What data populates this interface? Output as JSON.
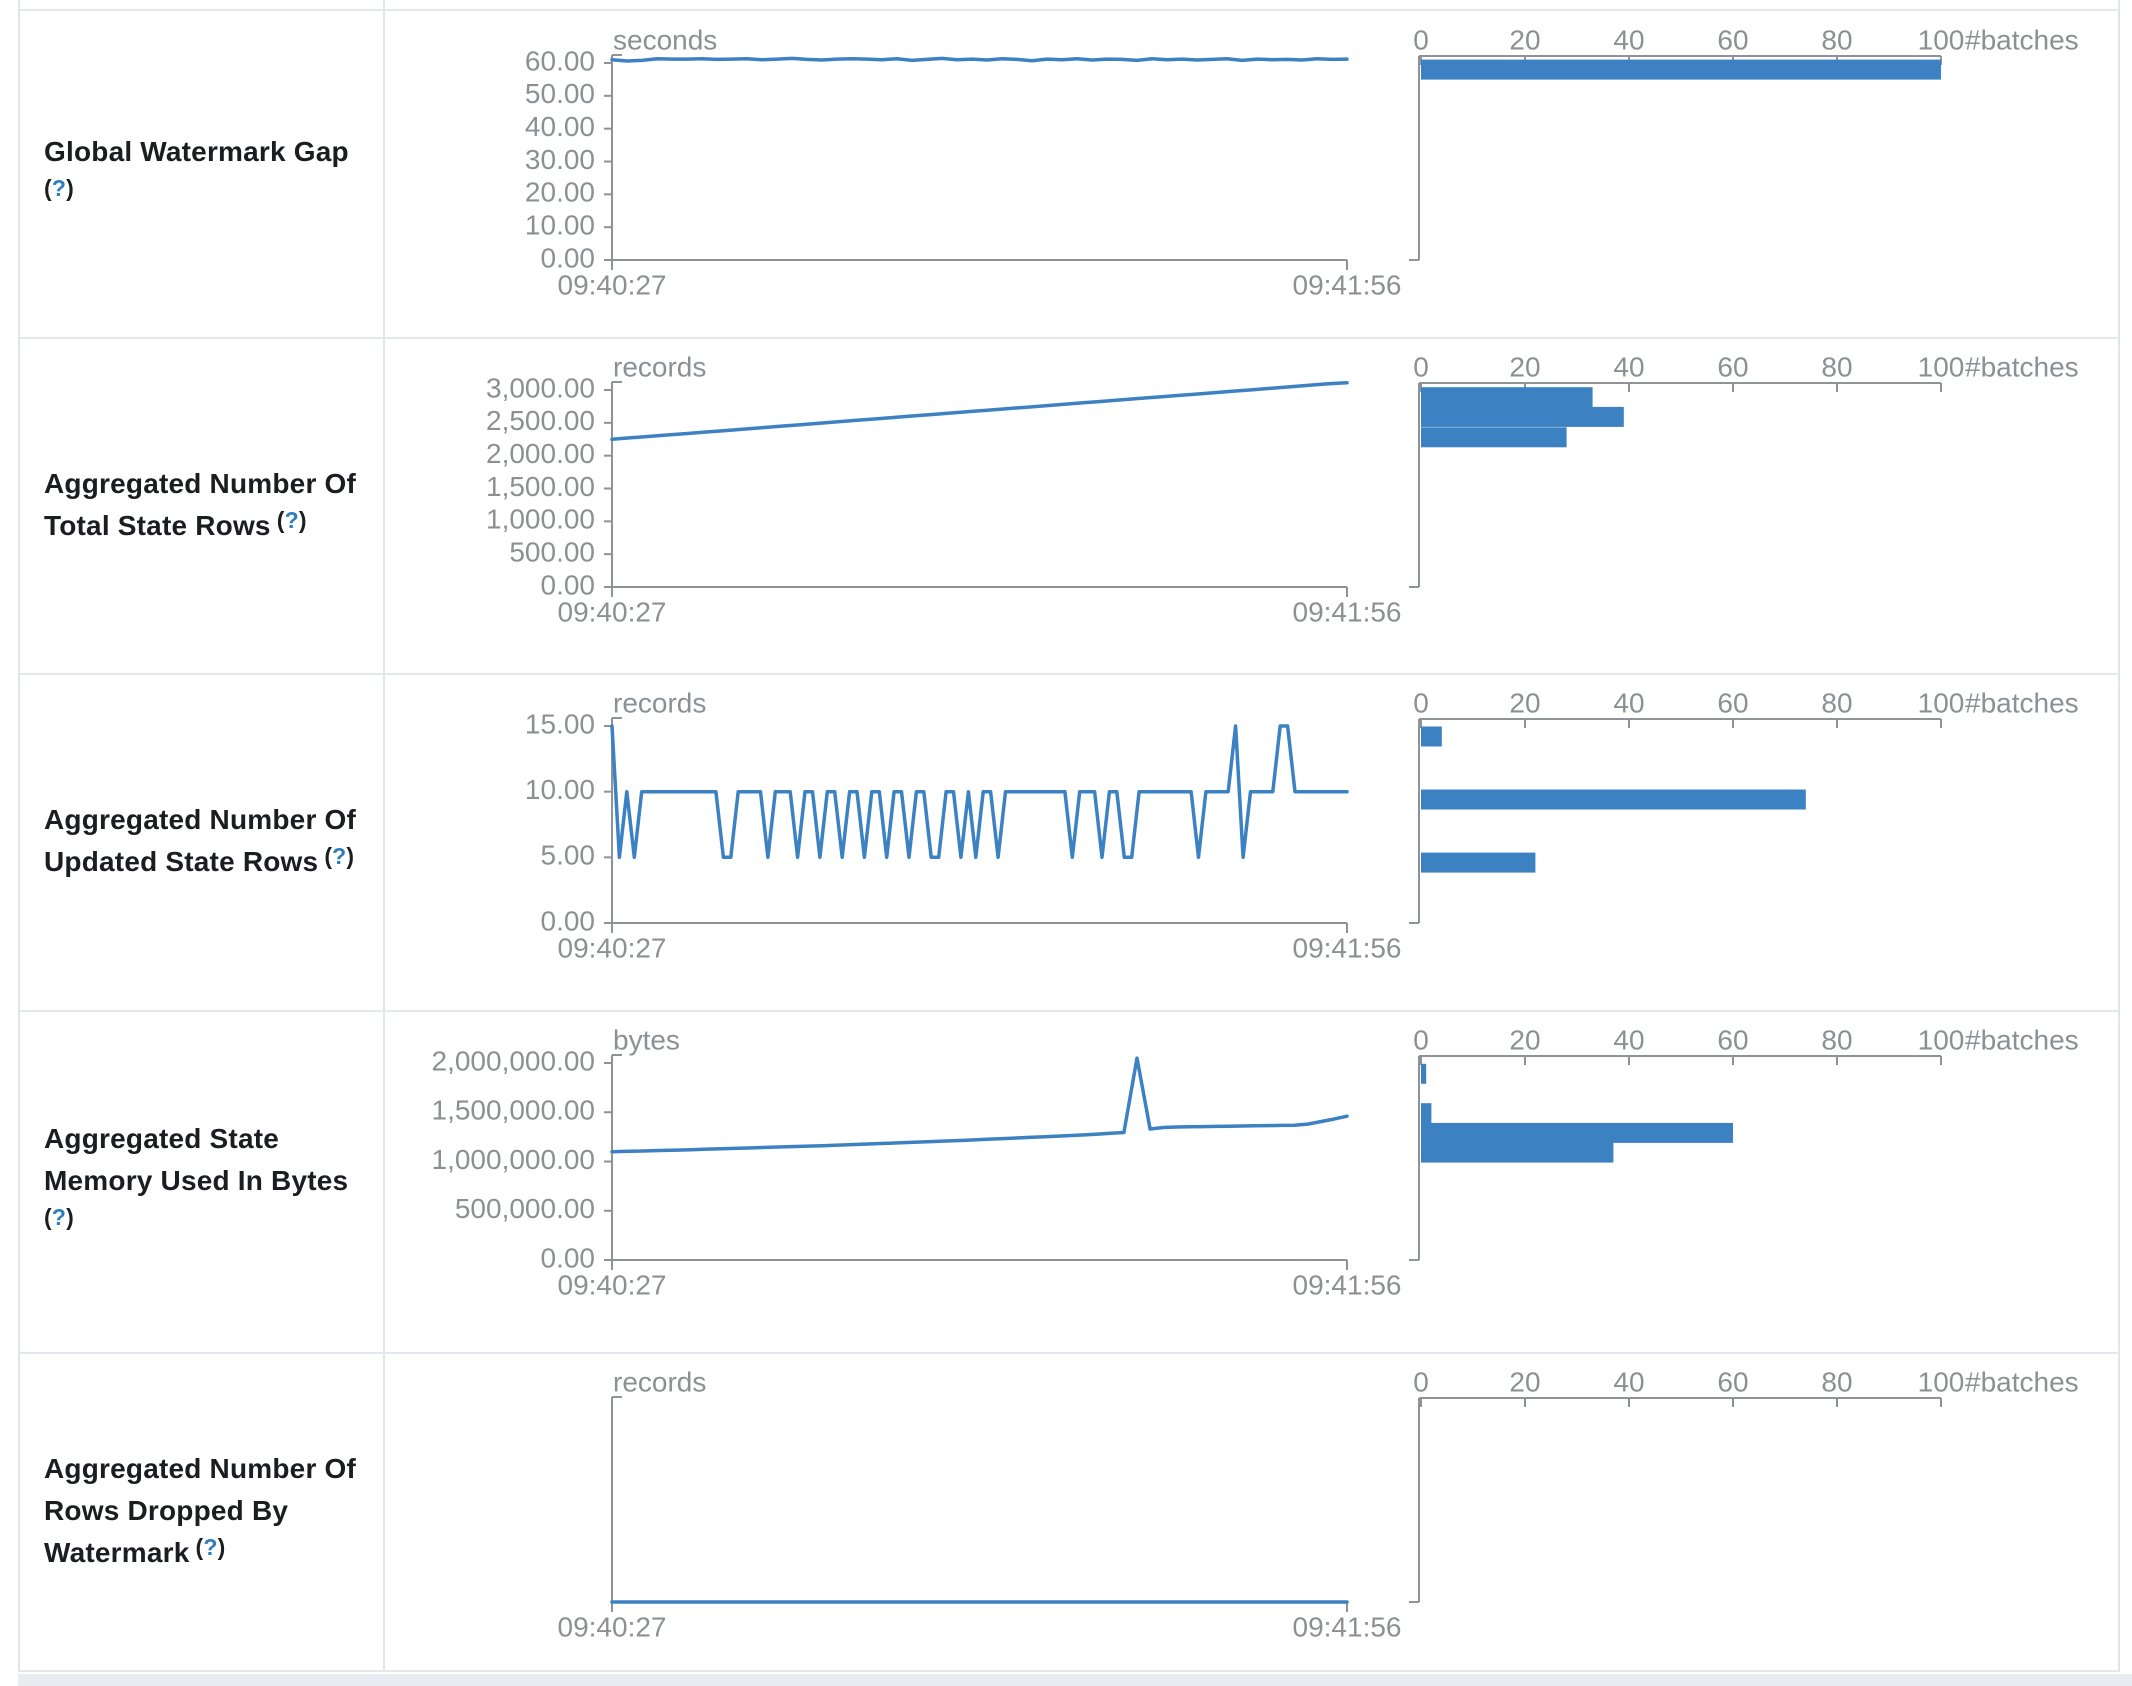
{
  "page": {
    "background": "#ffffff"
  },
  "colors": {
    "accent_blue": "#3c82c3",
    "axis_gray": "#8f9296",
    "tick_text_gray": "#8d9093",
    "label_text": "#1b1d21",
    "help_blue": "#2e7dc0",
    "border": "#e4e7eb",
    "bottom_band": "#e9ecf0"
  },
  "rows": [
    {
      "label_lines": [
        "Global Watermark Gap",
        "(?)"
      ]
    },
    {
      "label_lines": [
        "Aggregated Number Of",
        "Total State Rows (?)"
      ]
    },
    {
      "label_lines": [
        "Aggregated Number Of",
        "Updated State Rows (?)"
      ]
    },
    {
      "label_lines": [
        "Aggregated State",
        "Memory Used In Bytes",
        "(?)"
      ]
    },
    {
      "label_lines": [
        "Aggregated Number Of",
        "Rows Dropped By",
        "Watermark (?)"
      ]
    }
  ],
  "chart_data": [
    {
      "metric": "Global Watermark Gap",
      "timeline": {
        "type": "line",
        "unit": "seconds",
        "x_start_label": "09:40:27",
        "x_end_label": "09:41:56",
        "y_max": 60,
        "y_ticks": [
          {
            "v": 0,
            "label": "0.00"
          },
          {
            "v": 10,
            "label": "10.00"
          },
          {
            "v": 20,
            "label": "20.00"
          },
          {
            "v": 30,
            "label": "30.00"
          },
          {
            "v": 40,
            "label": "40.00"
          },
          {
            "v": 50,
            "label": "50.00"
          },
          {
            "v": 60,
            "label": "60.00"
          }
        ],
        "values": [
          61.0,
          60.6,
          60.8,
          61.3,
          61.2,
          61.2,
          61.3,
          61.1,
          61.2,
          61.3,
          61.0,
          61.2,
          61.4,
          61.1,
          60.9,
          61.2,
          61.3,
          61.2,
          61.0,
          61.3,
          60.8,
          61.1,
          61.4,
          61.0,
          61.2,
          60.9,
          61.3,
          61.1,
          60.7,
          61.2,
          61.0,
          61.3,
          60.9,
          61.2,
          61.1,
          60.8,
          61.3,
          61.0,
          61.2,
          60.9,
          61.1,
          61.3,
          60.8,
          61.2,
          61.0,
          61.1,
          60.9,
          61.3,
          61.1,
          61.2
        ]
      },
      "histogram": {
        "type": "bar",
        "axis_label": "#batches",
        "x_max": 100,
        "x_ticks": [
          0,
          20,
          40,
          60,
          80,
          100
        ],
        "bars": [
          {
            "bin_center": 58,
            "count": 100
          }
        ]
      }
    },
    {
      "metric": "Aggregated Number Of Total State Rows",
      "timeline": {
        "type": "line",
        "unit": "records",
        "x_start_label": "09:40:27",
        "x_end_label": "09:41:56",
        "y_max": 3000,
        "y_ticks": [
          {
            "v": 0,
            "label": "0.00"
          },
          {
            "v": 500,
            "label": "500.00"
          },
          {
            "v": 1000,
            "label": "1,000.00"
          },
          {
            "v": 1500,
            "label": "1,500.00"
          },
          {
            "v": 2000,
            "label": "2,000.00"
          },
          {
            "v": 2500,
            "label": "2,500.00"
          },
          {
            "v": 3000,
            "label": "3,000.00"
          }
        ],
        "values": [
          2250,
          2272,
          2294,
          2316,
          2338,
          2360,
          2382,
          2405,
          2427,
          2450,
          2472,
          2494,
          2516,
          2538,
          2560,
          2583,
          2605,
          2627,
          2650,
          2672,
          2694,
          2716,
          2738,
          2760,
          2783,
          2805,
          2827,
          2850,
          2872,
          2894,
          2916,
          2938,
          2960,
          2983,
          3005,
          3027,
          3050,
          3072,
          3094,
          3110
        ]
      },
      "histogram": {
        "type": "bar",
        "axis_label": "#batches",
        "x_max": 100,
        "x_ticks": [
          0,
          20,
          40,
          60,
          80,
          100
        ],
        "bars": [
          {
            "bin_center": 2890,
            "count": 33
          },
          {
            "bin_center": 2590,
            "count": 39
          },
          {
            "bin_center": 2280,
            "count": 28
          }
        ]
      }
    },
    {
      "metric": "Aggregated Number Of Updated State Rows",
      "timeline": {
        "type": "line",
        "unit": "records",
        "x_start_label": "09:40:27",
        "x_end_label": "09:41:56",
        "y_max": 15,
        "y_ticks": [
          {
            "v": 0,
            "label": "0.00"
          },
          {
            "v": 5,
            "label": "5.00"
          },
          {
            "v": 10,
            "label": "10.00"
          },
          {
            "v": 15,
            "label": "15.00"
          }
        ],
        "values": [
          15,
          5,
          10,
          5,
          10,
          10,
          10,
          10,
          10,
          10,
          10,
          10,
          10,
          10,
          10,
          5,
          5,
          10,
          10,
          10,
          10,
          5,
          10,
          10,
          10,
          5,
          10,
          10,
          5,
          10,
          10,
          5,
          10,
          10,
          5,
          10,
          10,
          5,
          10,
          10,
          5,
          10,
          10,
          5,
          5,
          10,
          10,
          5,
          10,
          5,
          10,
          10,
          5,
          10,
          10,
          10,
          10,
          10,
          10,
          10,
          10,
          10,
          5,
          10,
          10,
          10,
          5,
          10,
          10,
          5,
          5,
          10,
          10,
          10,
          10,
          10,
          10,
          10,
          10,
          5,
          10,
          10,
          10,
          10,
          15,
          5,
          10,
          10,
          10,
          10,
          15,
          15,
          10,
          10,
          10,
          10,
          10,
          10,
          10,
          10
        ]
      },
      "histogram": {
        "type": "bar",
        "axis_label": "#batches",
        "x_max": 100,
        "x_ticks": [
          0,
          20,
          40,
          60,
          80,
          100
        ],
        "bars": [
          {
            "bin_center": 14.2,
            "count": 4
          },
          {
            "bin_center": 9.4,
            "count": 74
          },
          {
            "bin_center": 4.6,
            "count": 22
          }
        ]
      }
    },
    {
      "metric": "Aggregated State Memory Used In Bytes",
      "timeline": {
        "type": "line",
        "unit": "bytes",
        "x_start_label": "09:40:27",
        "x_end_label": "09:41:56",
        "y_max": 2000000,
        "y_ticks": [
          {
            "v": 0,
            "label": "0.00"
          },
          {
            "v": 500000,
            "label": "500,000.00"
          },
          {
            "v": 1000000,
            "label": "1,000,000.00"
          },
          {
            "v": 1500000,
            "label": "1,500,000.00"
          },
          {
            "v": 2000000,
            "label": "2,000,000.00"
          }
        ],
        "values": [
          1100000,
          1103000,
          1106000,
          1110000,
          1113000,
          1116000,
          1120000,
          1124000,
          1128000,
          1132000,
          1136000,
          1140000,
          1144000,
          1148000,
          1152000,
          1156000,
          1160000,
          1165000,
          1170000,
          1175000,
          1180000,
          1185000,
          1190000,
          1195000,
          1200000,
          1205000,
          1210000,
          1216000,
          1222000,
          1228000,
          1234000,
          1240000,
          1246000,
          1252000,
          1258000,
          1264000,
          1270000,
          1278000,
          1286000,
          1294000,
          2050000,
          1330000,
          1345000,
          1350000,
          1352000,
          1354000,
          1356000,
          1358000,
          1360000,
          1362000,
          1364000,
          1366000,
          1368000,
          1380000,
          1405000,
          1430000,
          1460000
        ]
      },
      "histogram": {
        "type": "bar",
        "axis_label": "#batches",
        "x_max": 100,
        "x_ticks": [
          0,
          20,
          40,
          60,
          80,
          100
        ],
        "bars": [
          {
            "bin_center": 1890000,
            "count": 1
          },
          {
            "bin_center": 1490000,
            "count": 2
          },
          {
            "bin_center": 1290000,
            "count": 60
          },
          {
            "bin_center": 1090000,
            "count": 37
          }
        ]
      }
    },
    {
      "metric": "Aggregated Number Of Rows Dropped By Watermark",
      "timeline": {
        "type": "line",
        "unit": "records",
        "x_start_label": "09:40:27",
        "x_end_label": "09:41:56",
        "y_max": 1,
        "y_ticks": [],
        "values": [
          0,
          0
        ]
      },
      "histogram": {
        "type": "bar",
        "axis_label": "#batches",
        "x_max": 100,
        "x_ticks": [
          0,
          20,
          40,
          60,
          80,
          100
        ],
        "bars": []
      }
    }
  ]
}
